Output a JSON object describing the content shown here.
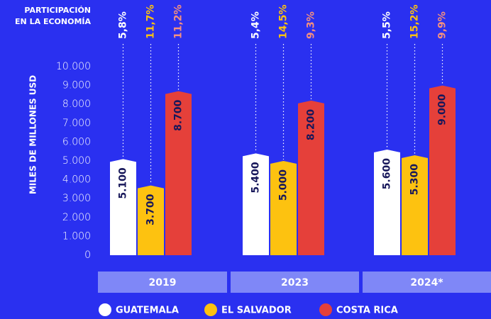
{
  "chart_data": {
    "type": "bar",
    "annotation_lines": [
      "PARTICIPACIÓN",
      "EN LA ECONOMÍA"
    ],
    "y_label": "MILES DE MILLONES USD",
    "categories": [
      "2019",
      "2023",
      "2024*"
    ],
    "series": [
      {
        "name": "GUATEMALA",
        "color": "#ffffff",
        "share_color": "#ffffff",
        "values": [
          5100,
          5400,
          5600
        ],
        "value_labels": [
          "5.100",
          "5.400",
          "5.600"
        ],
        "share_labels": [
          "5,8%",
          "5,4%",
          "5,5%"
        ]
      },
      {
        "name": "EL SALVADOR",
        "color": "#fdc210",
        "share_color": "#fdc210",
        "values": [
          3700,
          5000,
          5300
        ],
        "value_labels": [
          "3.700",
          "5.000",
          "5.300"
        ],
        "share_labels": [
          "11,7%",
          "14,5%",
          "15,2%"
        ]
      },
      {
        "name": "COSTA RICA",
        "color": "#e5403a",
        "share_color": "#f4907f",
        "values": [
          8700,
          8200,
          9000
        ],
        "value_labels": [
          "8.700",
          "8.200",
          "9.000"
        ],
        "share_labels": [
          "11,2%",
          "9,3%",
          "9,9%"
        ]
      }
    ],
    "ylim": [
      0,
      10000
    ],
    "yticks": [
      0,
      {
        "value": 1000,
        "label": "1.000"
      },
      {
        "value": 2000,
        "label": "2.000"
      },
      {
        "value": 3000,
        "label": "3.000"
      },
      {
        "value": 4000,
        "label": "4.000"
      },
      {
        "value": 5000,
        "label": "5.000"
      },
      {
        "value": 6000,
        "label": "6.000"
      },
      {
        "value": 7000,
        "label": "7.000"
      },
      {
        "value": 8000,
        "label": "8.000"
      },
      {
        "value": 9000,
        "label": "9.000"
      },
      {
        "value": 10000,
        "label": "10.000"
      }
    ]
  }
}
